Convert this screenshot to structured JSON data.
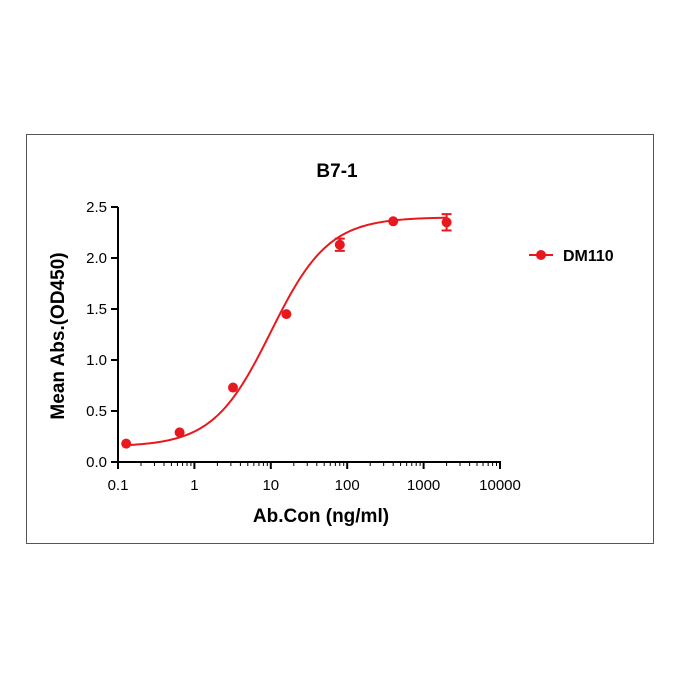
{
  "chart_data": {
    "type": "scatter",
    "title": "B7-1",
    "xlabel": "Ab.Con (ng/ml)",
    "ylabel": "Mean Abs.(OD450)",
    "x_scale": "log",
    "xlim": [
      0.1,
      10000
    ],
    "ylim": [
      0.0,
      2.5
    ],
    "x_tick_values": [
      0.1,
      1,
      10,
      100,
      1000,
      10000
    ],
    "x_ticks": [
      "0.1",
      "1",
      "10",
      "100",
      "1000",
      "10000"
    ],
    "y_tick_values": [
      0.0,
      0.5,
      1.0,
      1.5,
      2.0,
      2.5
    ],
    "y_ticks": [
      "0.0",
      "0.5",
      "1.0",
      "1.5",
      "2.0",
      "2.5"
    ],
    "grid": false,
    "legend_position": "right",
    "fit": "sigmoidal 4PL",
    "series": [
      {
        "name": "DM110",
        "color": "#e8191e",
        "marker": "circle",
        "x": [
          0.128,
          0.64,
          3.2,
          16,
          80,
          400,
          2000
        ],
        "y": [
          0.18,
          0.29,
          0.73,
          1.45,
          2.13,
          2.36,
          2.35
        ],
        "y_err": [
          0.01,
          0.01,
          0.01,
          0.01,
          0.06,
          0.01,
          0.08
        ],
        "fit_params": {
          "bottom": 0.15,
          "top": 2.4,
          "ec50": 10.0,
          "hill": 1.15
        }
      }
    ]
  }
}
